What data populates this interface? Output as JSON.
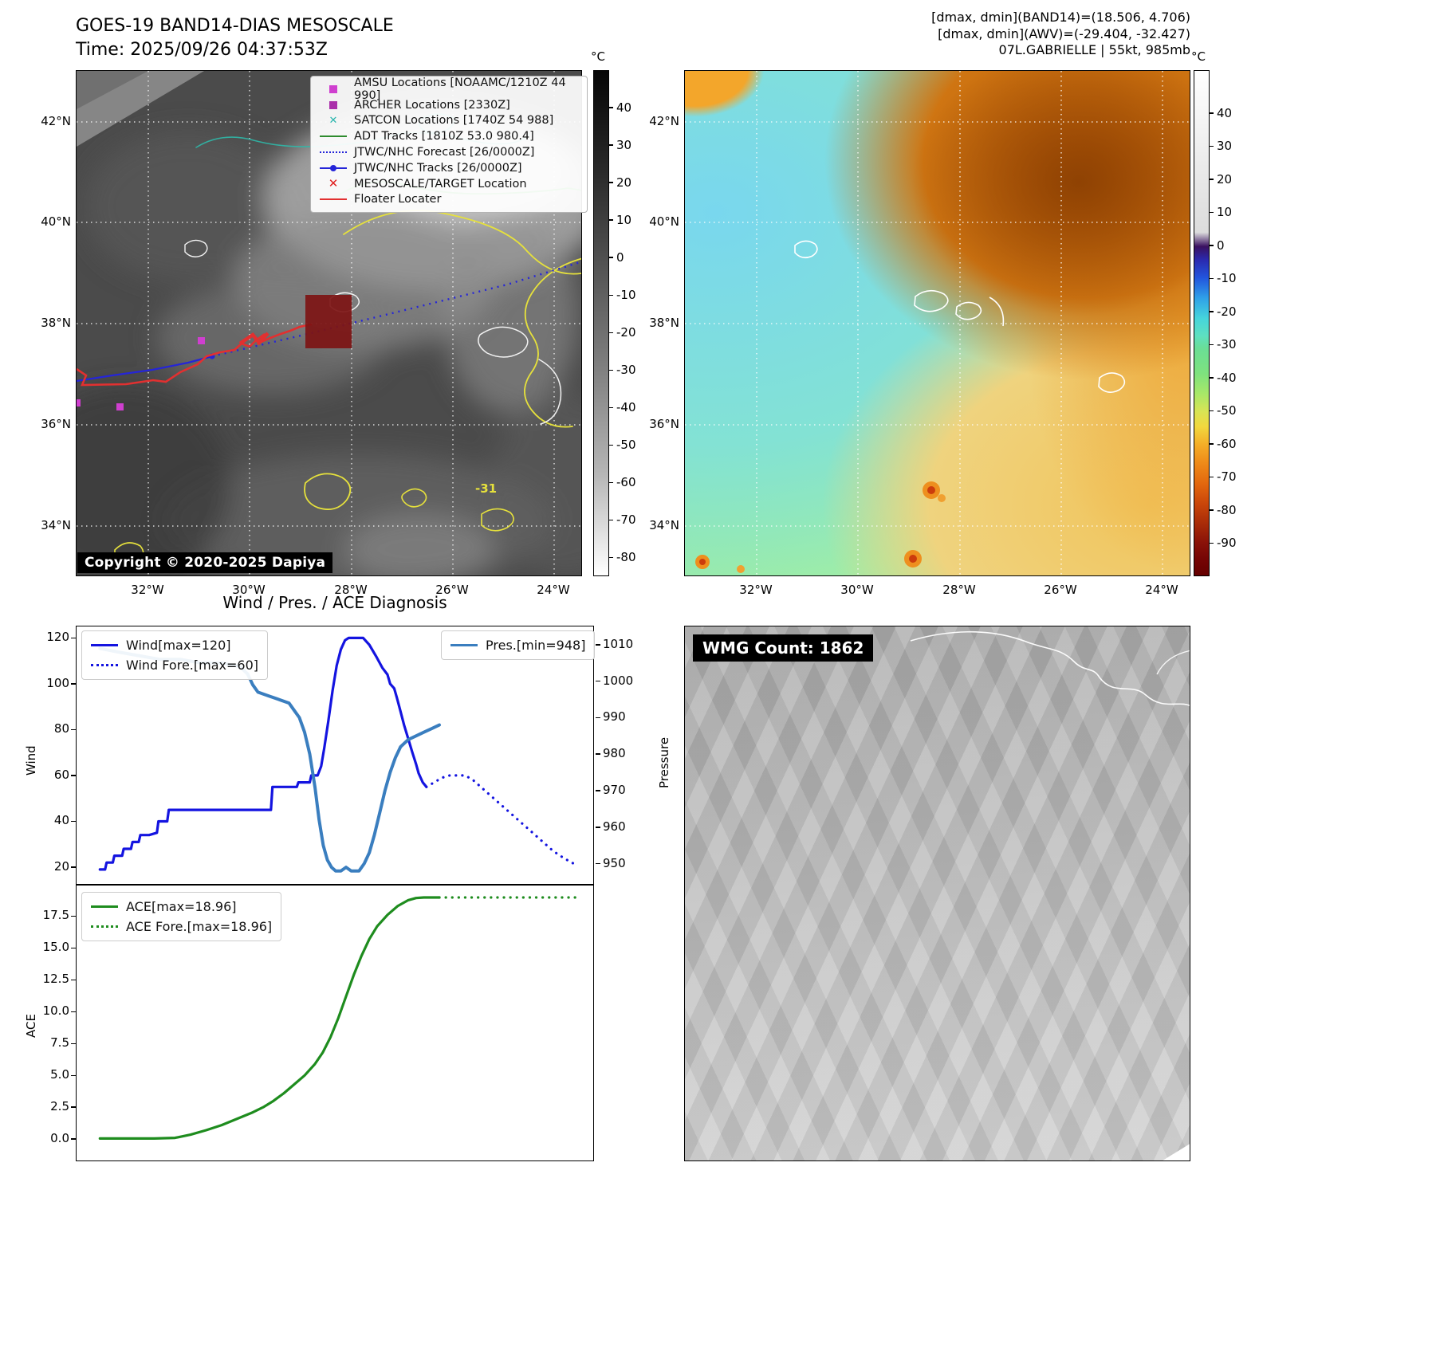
{
  "left_map": {
    "title_line1": "GOES-19 BAND14-DIAS MESOSCALE",
    "title_line2": "Time: 2025/09/26 04:37:53Z",
    "copyright": "Copyright © 2020-2025 Dapiya",
    "annotation": "-31",
    "lat_ticks": [
      "42°N",
      "40°N",
      "38°N",
      "36°N",
      "34°N"
    ],
    "lon_ticks": [
      "32°W",
      "30°W",
      "28°W",
      "26°W",
      "24°W"
    ],
    "colorbar": {
      "unit": "°C",
      "ticks": [
        "40",
        "30",
        "20",
        "10",
        "0",
        "-10",
        "-20",
        "-30",
        "-40",
        "-50",
        "-60",
        "-70",
        "-80"
      ]
    },
    "legend": [
      {
        "marker": "square-magenta",
        "label": "AMSU Locations [NOAAMC/1210Z 44 990]"
      },
      {
        "marker": "square-purple",
        "label": "ARCHER Locations [2330Z]"
      },
      {
        "marker": "x-cyan",
        "label": "SATCON Locations [1740Z 54 988]"
      },
      {
        "marker": "line-green",
        "label": "ADT Tracks [1810Z 53.0 980.4]"
      },
      {
        "marker": "dotted-blue",
        "label": "JTWC/NHC Forecast [26/0000Z]"
      },
      {
        "marker": "line-dot-blue",
        "label": "JTWC/NHC Tracks [26/0000Z]"
      },
      {
        "marker": "x-red",
        "label": "MESOSCALE/TARGET Location"
      },
      {
        "marker": "line-red",
        "label": "Floater Locater"
      }
    ]
  },
  "right_map": {
    "header_lines": [
      "[dmax, dmin](BAND14)=(18.506, 4.706)",
      "[dmax, dmin](AWV)=(-29.404, -32.427)",
      "07L.GABRIELLE | 55kt, 985mb"
    ],
    "lat_ticks": [
      "42°N",
      "40°N",
      "38°N",
      "36°N",
      "34°N"
    ],
    "lon_ticks": [
      "32°W",
      "30°W",
      "28°W",
      "26°W",
      "24°W"
    ],
    "colorbar": {
      "unit": "°C",
      "ticks": [
        "40",
        "30",
        "20",
        "10",
        "0",
        "-10",
        "-20",
        "-30",
        "-40",
        "-50",
        "-60",
        "-70",
        "-80",
        "-90"
      ]
    }
  },
  "wmg": {
    "label": "WMG Count: 1862"
  },
  "chart_data": [
    {
      "type": "line",
      "title": "Wind / Pres. / ACE Diagnosis",
      "panel": "wind_pressure",
      "ylabel_left": "Wind",
      "ylabel_right": "Pressure",
      "ylim_left": [
        12,
        125
      ],
      "ylim_right": [
        944,
        1015
      ],
      "yticks_left": [
        "120",
        "100",
        "80",
        "60",
        "40",
        "20"
      ],
      "yticks_right": [
        "1010",
        "1000",
        "990",
        "980",
        "970",
        "960",
        "950"
      ],
      "legend_left": [
        {
          "label": "Wind[max=120]",
          "style": "solid",
          "color": "#1414e0"
        },
        {
          "label": "Wind Fore.[max=60]",
          "style": "dotted",
          "color": "#1414e0"
        }
      ],
      "legend_right": [
        {
          "label": "Pres.[min=948]",
          "style": "solid",
          "color": "#3a7ebf"
        }
      ],
      "series": [
        {
          "name": "Wind",
          "axis": "left",
          "color": "#1414e0",
          "style": "solid",
          "width": 3.2,
          "points": [
            [
              0.045,
              19
            ],
            [
              0.055,
              19
            ],
            [
              0.058,
              22
            ],
            [
              0.07,
              22
            ],
            [
              0.073,
              25
            ],
            [
              0.088,
              25
            ],
            [
              0.091,
              28
            ],
            [
              0.105,
              28
            ],
            [
              0.108,
              31
            ],
            [
              0.12,
              31
            ],
            [
              0.123,
              34
            ],
            [
              0.14,
              34
            ],
            [
              0.155,
              35
            ],
            [
              0.158,
              40
            ],
            [
              0.175,
              40
            ],
            [
              0.178,
              45
            ],
            [
              0.375,
              45
            ],
            [
              0.378,
              55
            ],
            [
              0.425,
              55
            ],
            [
              0.428,
              57
            ],
            [
              0.45,
              57
            ],
            [
              0.453,
              60
            ],
            [
              0.465,
              60
            ],
            [
              0.472,
              64
            ],
            [
              0.478,
              72
            ],
            [
              0.486,
              84
            ],
            [
              0.494,
              97
            ],
            [
              0.502,
              108
            ],
            [
              0.51,
              115
            ],
            [
              0.518,
              119
            ],
            [
              0.525,
              120
            ],
            [
              0.553,
              120
            ],
            [
              0.565,
              117
            ],
            [
              0.578,
              112
            ],
            [
              0.59,
              107
            ],
            [
              0.6,
              104
            ],
            [
              0.605,
              100
            ],
            [
              0.613,
              98
            ],
            [
              0.618,
              94
            ],
            [
              0.625,
              88
            ],
            [
              0.632,
              82
            ],
            [
              0.64,
              76
            ],
            [
              0.648,
              70
            ],
            [
              0.655,
              65
            ],
            [
              0.66,
              61
            ],
            [
              0.668,
              57
            ],
            [
              0.675,
              55
            ]
          ]
        },
        {
          "name": "Wind Fore.",
          "axis": "left",
          "color": "#1414e0",
          "style": "dotted",
          "width": 3.2,
          "points": [
            [
              0.675,
              55
            ],
            [
              0.69,
              57
            ],
            [
              0.705,
              59
            ],
            [
              0.72,
              60
            ],
            [
              0.75,
              60
            ],
            [
              0.765,
              58
            ],
            [
              0.78,
              55
            ],
            [
              0.8,
              51
            ],
            [
              0.82,
              47
            ],
            [
              0.84,
              43
            ],
            [
              0.86,
              39
            ],
            [
              0.88,
              35
            ],
            [
              0.9,
              31
            ],
            [
              0.92,
              27
            ],
            [
              0.94,
              24
            ],
            [
              0.955,
              22
            ],
            [
              0.965,
              21
            ]
          ]
        },
        {
          "name": "Pres.",
          "axis": "right",
          "color": "#3a7ebf",
          "style": "solid",
          "width": 4,
          "points": [
            [
              0.045,
              1009
            ],
            [
              0.08,
              1008
            ],
            [
              0.12,
              1007
            ],
            [
              0.16,
              1006
            ],
            [
              0.2,
              1006
            ],
            [
              0.24,
              1005
            ],
            [
              0.28,
              1005
            ],
            [
              0.315,
              1004
            ],
            [
              0.33,
              1002
            ],
            [
              0.34,
              999
            ],
            [
              0.35,
              997
            ],
            [
              0.37,
              996
            ],
            [
              0.39,
              995
            ],
            [
              0.41,
              994
            ],
            [
              0.42,
              992
            ],
            [
              0.43,
              990
            ],
            [
              0.44,
              986
            ],
            [
              0.45,
              980
            ],
            [
              0.46,
              971
            ],
            [
              0.468,
              962
            ],
            [
              0.476,
              955
            ],
            [
              0.484,
              951
            ],
            [
              0.492,
              949
            ],
            [
              0.5,
              948
            ],
            [
              0.51,
              948
            ],
            [
              0.52,
              949
            ],
            [
              0.53,
              948
            ],
            [
              0.545,
              948
            ],
            [
              0.555,
              950
            ],
            [
              0.565,
              953
            ],
            [
              0.575,
              958
            ],
            [
              0.585,
              964
            ],
            [
              0.595,
              970
            ],
            [
              0.605,
              975
            ],
            [
              0.615,
              979
            ],
            [
              0.625,
              982
            ],
            [
              0.64,
              984
            ],
            [
              0.655,
              985
            ],
            [
              0.67,
              986
            ],
            [
              0.685,
              987
            ],
            [
              0.7,
              988
            ]
          ]
        }
      ]
    },
    {
      "type": "line",
      "panel": "ace",
      "ylabel_left": "ACE",
      "ylim_left": [
        -1.8,
        19.9
      ],
      "yticks_left": [
        "17.5",
        "15.0",
        "12.5",
        "10.0",
        "7.5",
        "5.0",
        "2.5",
        "0.0"
      ],
      "legend_left": [
        {
          "label": "ACE[max=18.96]",
          "style": "solid",
          "color": "#1e8c1e"
        },
        {
          "label": "ACE Fore.[max=18.96]",
          "style": "dotted",
          "color": "#1e8c1e"
        }
      ],
      "series": [
        {
          "name": "ACE",
          "axis": "left",
          "color": "#1e8c1e",
          "style": "solid",
          "width": 3.2,
          "points": [
            [
              0.045,
              0.05
            ],
            [
              0.1,
              0.05
            ],
            [
              0.15,
              0.05
            ],
            [
              0.19,
              0.1
            ],
            [
              0.22,
              0.35
            ],
            [
              0.25,
              0.7
            ],
            [
              0.28,
              1.1
            ],
            [
              0.31,
              1.6
            ],
            [
              0.34,
              2.1
            ],
            [
              0.36,
              2.5
            ],
            [
              0.38,
              3.0
            ],
            [
              0.4,
              3.6
            ],
            [
              0.42,
              4.3
            ],
            [
              0.44,
              5.0
            ],
            [
              0.46,
              5.9
            ],
            [
              0.475,
              6.8
            ],
            [
              0.49,
              8.0
            ],
            [
              0.505,
              9.5
            ],
            [
              0.52,
              11.2
            ],
            [
              0.535,
              12.9
            ],
            [
              0.55,
              14.4
            ],
            [
              0.565,
              15.7
            ],
            [
              0.58,
              16.7
            ],
            [
              0.6,
              17.6
            ],
            [
              0.62,
              18.3
            ],
            [
              0.64,
              18.75
            ],
            [
              0.655,
              18.92
            ],
            [
              0.67,
              18.96
            ],
            [
              0.7,
              18.96
            ]
          ]
        },
        {
          "name": "ACE Fore.",
          "axis": "left",
          "color": "#1e8c1e",
          "style": "dotted",
          "width": 3.2,
          "points": [
            [
              0.7,
              18.96
            ],
            [
              0.75,
              18.96
            ],
            [
              0.8,
              18.96
            ],
            [
              0.85,
              18.96
            ],
            [
              0.9,
              18.96
            ],
            [
              0.97,
              18.96
            ]
          ]
        }
      ]
    }
  ]
}
